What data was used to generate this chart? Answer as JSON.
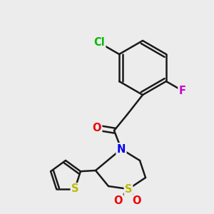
{
  "bg_color": "#ececec",
  "bond_color": "#1a1a1a",
  "bond_width": 1.8,
  "atom_colors": {
    "N": "#0000ee",
    "O": "#ee0000",
    "S_ring": "#bbbb00",
    "S_thio": "#bbbb00",
    "Cl": "#00bb00",
    "F": "#cc00cc",
    "C": "#1a1a1a"
  },
  "font_size": 10.5
}
